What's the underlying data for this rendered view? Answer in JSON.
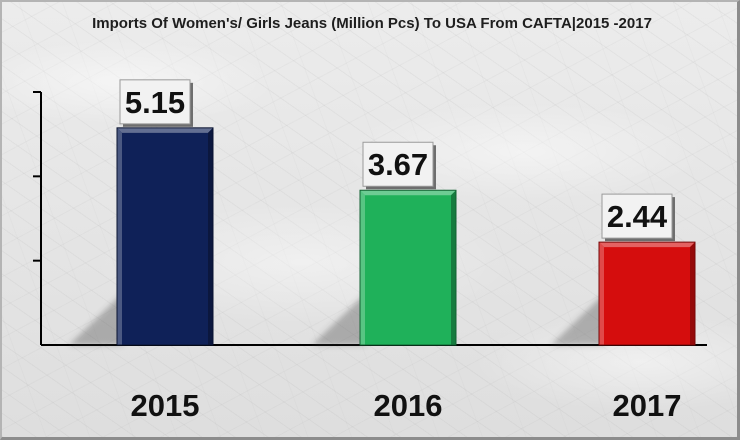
{
  "chart_data": {
    "type": "bar",
    "title": "Imports Of Women's/ Girls Jeans (Million Pcs) To USA From CAFTA|2015 -2017",
    "xlabel": "",
    "ylabel": "",
    "categories": [
      "2015",
      "2016",
      "2017"
    ],
    "values": [
      5.15,
      3.67,
      2.44
    ],
    "data_labels": [
      "5.15",
      "3.67",
      "2.44"
    ],
    "bar_colors": [
      "#0f2158",
      "#1fb15a",
      "#d50d0d"
    ],
    "ylim": [
      0,
      6
    ],
    "y_ticks": [
      2,
      4,
      6
    ],
    "grid": false,
    "legend": "none"
  }
}
